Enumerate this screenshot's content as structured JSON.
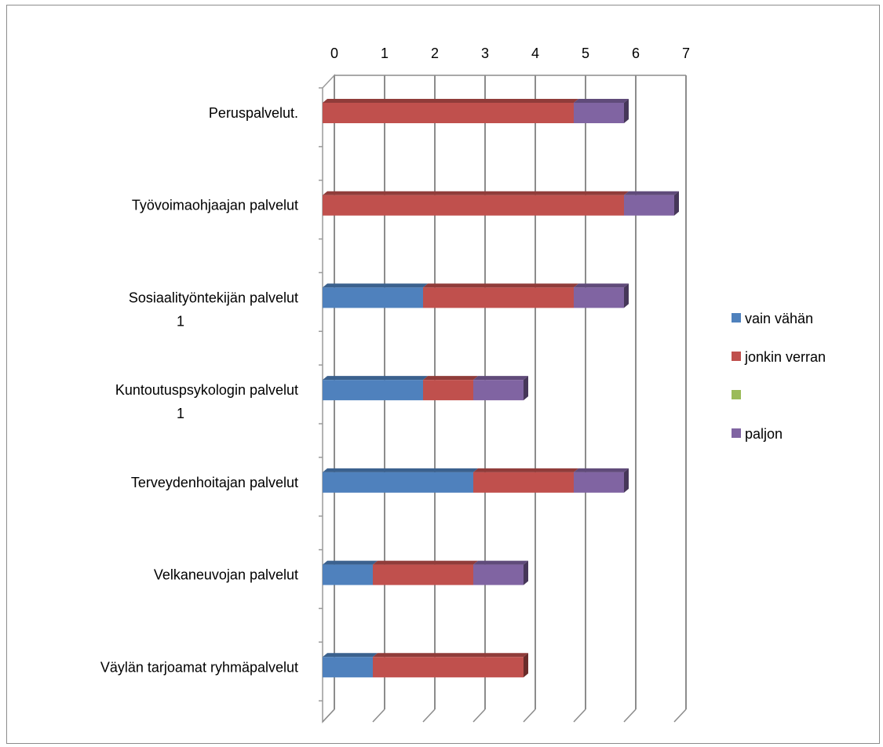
{
  "chart_data": {
    "type": "bar",
    "orientation": "horizontal",
    "stacked": true,
    "style": "3d",
    "categories": [
      [
        "Peruspalvelut."
      ],
      [
        "Työvoimaohjaajan palvelut"
      ],
      [
        "Sosiaalityöntekijän palvelut",
        "1"
      ],
      [
        "Kuntoutuspsykologin palvelut",
        "1"
      ],
      [
        "Terveydenhoitajan palvelut"
      ],
      [
        "Velkaneuvojan palvelut"
      ],
      [
        "Väylän tarjoamat ryhmäpalvelut"
      ]
    ],
    "series": [
      {
        "name": "vain vähän",
        "color": "#4f81bd",
        "values": [
          0,
          0,
          2,
          2,
          3,
          1,
          1
        ]
      },
      {
        "name": "jonkin verran",
        "color": "#c0504d",
        "values": [
          5,
          6,
          3,
          1,
          2,
          2,
          3
        ]
      },
      {
        "name": "",
        "color": "#9bbb59",
        "values": [
          0,
          0,
          0,
          0,
          0,
          0,
          0
        ]
      },
      {
        "name": "paljon",
        "color": "#8064a2",
        "values": [
          1,
          1,
          1,
          1,
          1,
          1,
          0
        ]
      }
    ],
    "xlim": [
      0,
      7
    ],
    "ticks": [
      "0",
      "1",
      "2",
      "3",
      "4",
      "5",
      "6",
      "7"
    ],
    "axis_position": "top",
    "grid": true,
    "legend": "right"
  }
}
